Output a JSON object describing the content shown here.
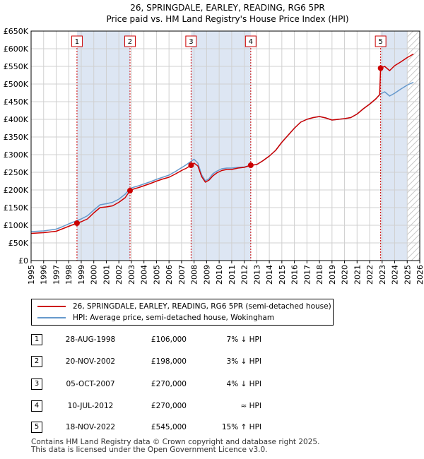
{
  "chart_data": {
    "type": "line",
    "title": "26, SPRINGDALE, EARLEY, READING, RG6 5PR",
    "subtitle": "Price paid vs. HM Land Registry's House Price Index (HPI)",
    "xlim": [
      1995,
      2026
    ],
    "ylim": [
      0,
      650000
    ],
    "x_ticks": [
      1995,
      1996,
      1997,
      1998,
      1999,
      2000,
      2001,
      2002,
      2003,
      2004,
      2005,
      2006,
      2007,
      2008,
      2009,
      2010,
      2011,
      2012,
      2013,
      2014,
      2015,
      2016,
      2017,
      2018,
      2019,
      2020,
      2021,
      2022,
      2023,
      2024,
      2025,
      2026
    ],
    "y_ticks": [
      {
        "value": 0,
        "label": "£0"
      },
      {
        "value": 50000,
        "label": "£50K"
      },
      {
        "value": 100000,
        "label": "£100K"
      },
      {
        "value": 150000,
        "label": "£150K"
      },
      {
        "value": 200000,
        "label": "£200K"
      },
      {
        "value": 250000,
        "label": "£250K"
      },
      {
        "value": 300000,
        "label": "£300K"
      },
      {
        "value": 350000,
        "label": "£350K"
      },
      {
        "value": 400000,
        "label": "£400K"
      },
      {
        "value": 450000,
        "label": "£450K"
      },
      {
        "value": 500000,
        "label": "£500K"
      },
      {
        "value": 550000,
        "label": "£550K"
      },
      {
        "value": 600000,
        "label": "£600K"
      },
      {
        "value": 650000,
        "label": "£650K"
      }
    ],
    "shaded_spans": [
      [
        1998.66,
        2002.89
      ],
      [
        2007.76,
        2012.52
      ],
      [
        2022.88,
        2025.0
      ]
    ],
    "hatch_from": 2025.0,
    "series": [
      {
        "name": "26, SPRINGDALE, EARLEY, READING, RG6 5PR (semi-detached house)",
        "color": "#cc0000",
        "x": [
          1995.0,
          1996.0,
          1997.0,
          1997.5,
          1998.0,
          1998.66,
          1999.0,
          1999.5,
          2000.0,
          2000.5,
          2001.0,
          2001.5,
          2002.0,
          2002.5,
          2002.89,
          2003.2,
          2003.6,
          2004.0,
          2004.5,
          2005.0,
          2005.5,
          2006.0,
          2006.5,
          2007.0,
          2007.4,
          2007.76,
          2008.0,
          2008.3,
          2008.6,
          2008.9,
          2009.2,
          2009.5,
          2009.8,
          2010.2,
          2010.6,
          2011.0,
          2011.5,
          2012.0,
          2012.52,
          2013.0,
          2013.5,
          2014.0,
          2014.5,
          2015.0,
          2015.5,
          2016.0,
          2016.5,
          2017.0,
          2017.5,
          2018.0,
          2018.5,
          2019.0,
          2019.5,
          2020.0,
          2020.5,
          2021.0,
          2021.5,
          2022.0,
          2022.5,
          2022.8,
          2022.88,
          2023.2,
          2023.6,
          2024.0,
          2024.5,
          2025.0,
          2025.5
        ],
        "values": [
          77000,
          79000,
          83000,
          90000,
          97000,
          106000,
          110000,
          118000,
          135000,
          150000,
          152000,
          155000,
          165000,
          178000,
          198000,
          203000,
          207000,
          212000,
          218000,
          225000,
          231000,
          236000,
          245000,
          255000,
          262000,
          270000,
          276000,
          268000,
          238000,
          222000,
          228000,
          240000,
          248000,
          255000,
          258000,
          258000,
          262000,
          264000,
          270000,
          272000,
          283000,
          296000,
          312000,
          335000,
          355000,
          375000,
          392000,
          400000,
          405000,
          408000,
          404000,
          398000,
          400000,
          402000,
          405000,
          415000,
          430000,
          443000,
          458000,
          470000,
          545000,
          550000,
          538000,
          552000,
          563000,
          575000,
          585000
        ]
      },
      {
        "name": "HPI: Average price, semi-detached house, Wokingham",
        "color": "#6699cc",
        "x": [
          1995.0,
          1996.0,
          1997.0,
          1997.5,
          1998.0,
          1998.66,
          1999.0,
          1999.5,
          2000.0,
          2000.5,
          2001.0,
          2001.5,
          2002.0,
          2002.5,
          2002.89,
          2003.2,
          2003.6,
          2004.0,
          2004.5,
          2005.0,
          2005.5,
          2006.0,
          2006.5,
          2007.0,
          2007.4,
          2007.76,
          2008.0,
          2008.3,
          2008.6,
          2008.9,
          2009.2,
          2009.5,
          2009.8,
          2010.2,
          2010.6,
          2011.0,
          2011.5,
          2012.0,
          2012.52,
          2013.0,
          2013.5,
          2014.0,
          2014.5,
          2015.0,
          2015.5,
          2016.0,
          2016.5,
          2017.0,
          2017.5,
          2018.0,
          2018.5,
          2019.0,
          2019.5,
          2020.0,
          2020.5,
          2021.0,
          2021.5,
          2022.0,
          2022.5,
          2022.88,
          2023.2,
          2023.6,
          2024.0,
          2024.5,
          2025.0,
          2025.5
        ],
        "values": [
          82000,
          84000,
          89000,
          96000,
          104000,
          113000,
          118000,
          127000,
          143000,
          158000,
          161000,
          165000,
          174000,
          188000,
          204000,
          208000,
          212000,
          217000,
          223000,
          230000,
          236000,
          242000,
          252000,
          263000,
          272000,
          281000,
          287000,
          276000,
          243000,
          226000,
          232000,
          246000,
          253000,
          260000,
          262000,
          262000,
          264000,
          265000,
          270000,
          272000,
          283000,
          296000,
          312000,
          335000,
          355000,
          375000,
          392000,
          400000,
          405000,
          408000,
          404000,
          398000,
          400000,
          402000,
          405000,
          415000,
          430000,
          443000,
          458000,
          472000,
          478000,
          466000,
          474000,
          486000,
          497000,
          505000
        ]
      }
    ],
    "sales": [
      {
        "num": "1",
        "x": 1998.66,
        "price": 106000
      },
      {
        "num": "2",
        "x": 2002.89,
        "price": 198000
      },
      {
        "num": "3",
        "x": 2007.76,
        "price": 270000
      },
      {
        "num": "4",
        "x": 2012.52,
        "price": 270000
      },
      {
        "num": "5",
        "x": 2022.88,
        "price": 545000
      }
    ],
    "legend": [
      {
        "label": "26, SPRINGDALE, EARLEY, READING, RG6 5PR (semi-detached house)",
        "color": "#cc0000"
      },
      {
        "label": "HPI: Average price, semi-detached house, Wokingham",
        "color": "#6699cc"
      }
    ]
  },
  "transactions": [
    {
      "num": "1",
      "date": "28-AUG-1998",
      "price": "£106,000",
      "hpi": "7% ↓ HPI"
    },
    {
      "num": "2",
      "date": "20-NOV-2002",
      "price": "£198,000",
      "hpi": "3% ↓ HPI"
    },
    {
      "num": "3",
      "date": "05-OCT-2007",
      "price": "£270,000",
      "hpi": "4% ↓ HPI"
    },
    {
      "num": "4",
      "date": "10-JUL-2012",
      "price": "£270,000",
      "hpi": "≈ HPI"
    },
    {
      "num": "5",
      "date": "18-NOV-2022",
      "price": "£545,000",
      "hpi": "15% ↑ HPI"
    }
  ],
  "footer": {
    "line1": "Contains HM Land Registry data © Crown copyright and database right 2025.",
    "line2": "This data is licensed under the Open Government Licence v3.0."
  }
}
